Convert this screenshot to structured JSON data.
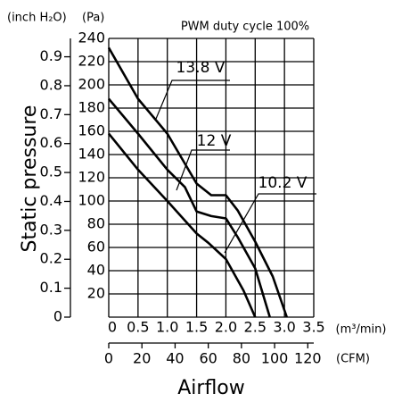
{
  "chart_data": {
    "type": "line",
    "title": "PWM duty cycle 100%",
    "x_label": "Airflow",
    "y_label": "Static pressure",
    "x_unit": "(m³/min)",
    "x2_unit": "(CFM)",
    "y_unit": "(Pa)",
    "y2_unit": "(inch H₂O)",
    "xlim": [
      0,
      3.5
    ],
    "xticks": [
      0,
      0.5,
      {
        "value": 1,
        "label": "1.0"
      },
      1.5,
      {
        "value": 2,
        "label": "2.0"
      },
      2.5,
      {
        "value": 3,
        "label": "3.0"
      },
      3.5
    ],
    "x2lim": [
      0,
      123.6
    ],
    "x2ticks": [
      0,
      20,
      40,
      60,
      80,
      100,
      120
    ],
    "ylim": [
      0,
      240
    ],
    "yticks": [
      20,
      40,
      60,
      80,
      100,
      120,
      140,
      160,
      180,
      200,
      220,
      240
    ],
    "y2lim": [
      0,
      0.9635
    ],
    "y2ticks": [
      0,
      0.1,
      0.2,
      0.3,
      0.4,
      0.5,
      0.6,
      0.7,
      0.8,
      0.9
    ],
    "grid": true,
    "series": [
      {
        "name": "13.8 V",
        "color": "#000000",
        "x": [
          0,
          0.5,
          1.0,
          1.5,
          1.75,
          2.0,
          2.2,
          2.5,
          2.8,
          3.04
        ],
        "values": [
          232,
          188,
          158,
          115,
          105,
          105,
          92,
          65,
          35,
          0
        ]
      },
      {
        "name": "12 V",
        "color": "#000000",
        "x": [
          0,
          0.5,
          1.0,
          1.3,
          1.5,
          1.75,
          2.0,
          2.2,
          2.5,
          2.75
        ],
        "values": [
          188,
          158,
          127,
          112,
          91,
          87,
          85,
          69,
          42,
          0
        ]
      },
      {
        "name": "10.2 V",
        "color": "#000000",
        "x": [
          0,
          0.5,
          1.0,
          1.5,
          1.7,
          2.0,
          2.3,
          2.5
        ],
        "values": [
          158,
          127,
          100,
          72,
          64,
          50,
          23,
          0
        ]
      }
    ]
  }
}
